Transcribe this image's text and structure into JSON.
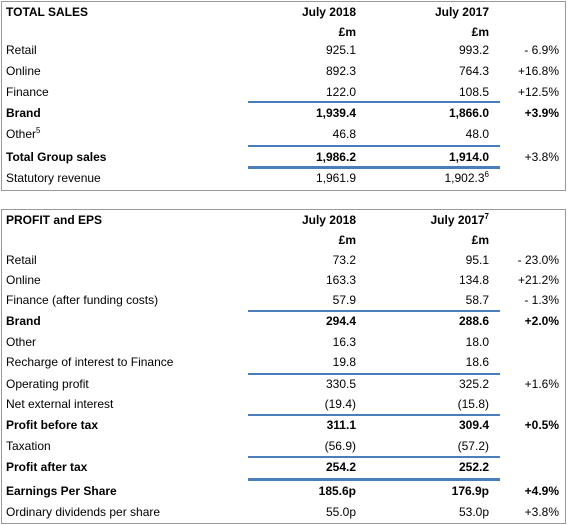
{
  "sales": {
    "title": "TOTAL SALES",
    "columns": [
      {
        "text": "July 2018"
      },
      {
        "text": "July 2017"
      }
    ],
    "units": [
      "£m",
      "£m"
    ],
    "rows": [
      {
        "label": "Retail",
        "cells": [
          "925.1",
          "993.2",
          "- 6.9%"
        ]
      },
      {
        "label": "Online",
        "cells": [
          "892.3",
          "764.3",
          "+16.8%"
        ]
      },
      {
        "label": "Finance",
        "cells": [
          "122.0",
          "108.5",
          "+12.5%"
        ]
      },
      {
        "label": "Brand",
        "cells": [
          "1,939.4",
          "1,866.0",
          "+3.9%"
        ]
      },
      {
        "label": "Other",
        "label_sup": "5",
        "cells": [
          "46.8",
          "48.0"
        ]
      },
      {
        "label": "Total Group sales",
        "cells": [
          "1,986.2",
          "1,914.0",
          "+3.8%"
        ]
      },
      {
        "label": "Statutory revenue",
        "cells": [
          "1,961.9",
          "1,902.3"
        ],
        "cell_sup": {
          "1": "6"
        }
      }
    ]
  },
  "profit": {
    "title": "PROFIT and EPS",
    "columns": [
      {
        "text": "July 2018"
      },
      {
        "text": "July 2017",
        "sup": "7"
      }
    ],
    "units": [
      "£m",
      "£m"
    ],
    "rows": [
      {
        "label": "Retail",
        "cells": [
          "73.2",
          "95.1",
          "- 23.0%"
        ]
      },
      {
        "label": "Online",
        "cells": [
          "163.3",
          "134.8",
          "+21.2%"
        ]
      },
      {
        "label": "Finance (after funding costs)",
        "cells": [
          "57.9",
          "58.7",
          "- 1.3%"
        ]
      },
      {
        "label": "Brand",
        "cells": [
          "294.4",
          "288.6",
          "+2.0%"
        ]
      },
      {
        "label": "Other",
        "cells": [
          "16.3",
          "18.0"
        ]
      },
      {
        "label": "Recharge of interest to Finance",
        "cells": [
          "19.8",
          "18.6"
        ]
      },
      {
        "label": "Operating profit",
        "cells": [
          "330.5",
          "325.2",
          "+1.6%"
        ]
      },
      {
        "label": "Net external interest",
        "cells": [
          "(19.4)",
          "(15.8)"
        ]
      },
      {
        "label": "Profit before tax",
        "cells": [
          "311.1",
          "309.4",
          "+0.5%"
        ]
      },
      {
        "label": "Taxation",
        "cells": [
          "(56.9)",
          "(57.2)"
        ]
      },
      {
        "label": "Profit after tax",
        "cells": [
          "254.2",
          "252.2"
        ]
      },
      {
        "label": "Earnings Per Share",
        "cells": [
          "185.6p",
          "176.9p",
          "+4.9%"
        ]
      },
      {
        "label": "Ordinary dividends per share",
        "cells": [
          "55.0p",
          "53.0p",
          "+3.8%"
        ]
      }
    ]
  }
}
